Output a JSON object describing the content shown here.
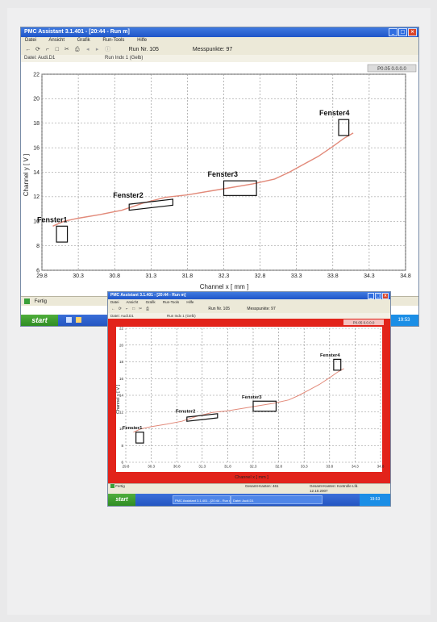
{
  "app": {
    "title": "PMC Assistant 3.1.401 - [20:44 - Run m]",
    "menu": [
      "Datei",
      "Ansicht",
      "Grafik",
      "Run-Tools",
      "Hilfe"
    ],
    "run_label": "Run Nr. 105",
    "messpunkte_label": "Messpunkte: 97",
    "info_left": "Datei: Audi.D1",
    "info_mid": "Run Indx 1 (Gelb)",
    "plot_badge": "P0.05 0.0.0.0",
    "status_text": "Fertig",
    "start_label": "start",
    "tray_time": "19:53"
  },
  "app_small": {
    "title": "PMC Assistant 3.1.401 - [20:44 - Run m]",
    "status_right_1": "Gesamt-Kanten: 461",
    "status_right_2": "Gesamt-Kanten: Kontrolle Lfd.",
    "status_right_3": "12.10.2007",
    "tray_time": "19:53"
  },
  "chart_data": {
    "type": "line",
    "title": "",
    "xlabel": "Channel x [ mm ]",
    "ylabel": "Channel y [ V ]",
    "xlim": [
      29.8,
      34.8
    ],
    "ylim": [
      6,
      22
    ],
    "x_ticks": [
      29.8,
      30.3,
      30.8,
      31.3,
      31.8,
      32.3,
      32.8,
      33.3,
      33.8,
      34.3,
      34.8
    ],
    "x_tick_labels": [
      "29.8",
      "30.3",
      "30.8",
      "31.3",
      "31.8",
      "32.3",
      "32.8",
      "33.3",
      "33.8",
      "34.3",
      "34.8"
    ],
    "y_ticks": [
      6,
      8,
      10,
      12,
      14,
      16,
      18,
      20,
      22
    ],
    "grid": true,
    "series": [
      {
        "color": "#e28a7a",
        "x": [
          29.95,
          30.1,
          30.3,
          30.6,
          30.9,
          31.2,
          31.5,
          31.8,
          32.1,
          32.4,
          32.7,
          33.0,
          33.2,
          33.4,
          33.6,
          33.8,
          33.95,
          34.08
        ],
        "y": [
          9.6,
          10.0,
          10.25,
          10.55,
          10.9,
          11.5,
          11.95,
          12.15,
          12.45,
          12.75,
          13.05,
          13.45,
          14.0,
          14.65,
          15.3,
          16.1,
          16.75,
          17.2
        ]
      }
    ],
    "windows": [
      {
        "label": "Fenster1",
        "x_range": [
          30.0,
          30.15
        ],
        "y_range": [
          8.3,
          9.6
        ],
        "slanted": false
      },
      {
        "label": "Fenster2",
        "x_range": [
          31.0,
          31.6
        ],
        "y_range": [
          10.9,
          11.8
        ],
        "slanted": true
      },
      {
        "label": "Fenster3",
        "x_range": [
          32.3,
          32.75
        ],
        "y_range": [
          12.1,
          13.3
        ],
        "slanted": false
      },
      {
        "label": "Fenster4",
        "x_range": [
          33.88,
          34.02
        ],
        "y_range": [
          17.0,
          18.3
        ],
        "slanted": false
      }
    ]
  }
}
